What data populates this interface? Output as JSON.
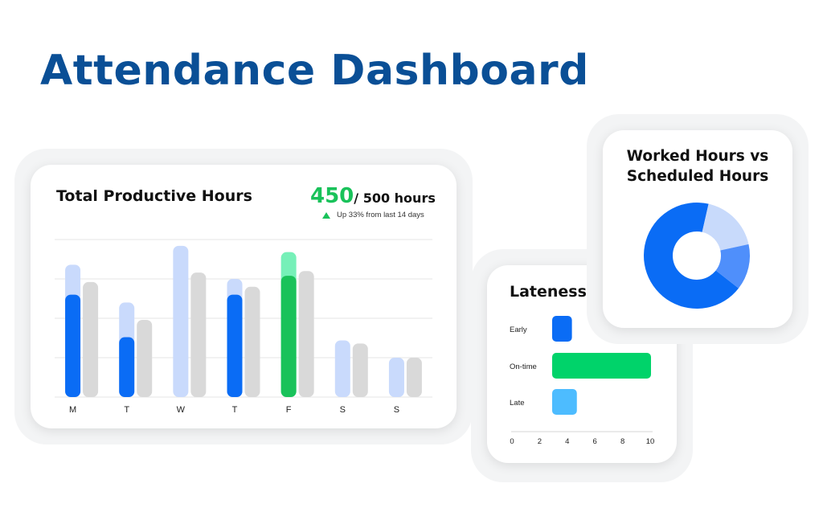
{
  "page": {
    "title": "Attendance Dashboard"
  },
  "productive_hours": {
    "title": "Total Productive Hours",
    "kpi_value": "450",
    "kpi_total": "/ 500 hours",
    "trend_text": "Up 33% from last 14 days",
    "trend_icon": "triangle-up-icon"
  },
  "lateness": {
    "title": "Lateness"
  },
  "donut": {
    "title_line1": "Worked Hours vs",
    "title_line2": "Scheduled Hours"
  },
  "colors": {
    "title": "#0a4f96",
    "blue": "#0a6cf5",
    "light_blue": "#c9dafc",
    "gray": "#d9d9d9",
    "green": "#19c25a",
    "mint": "#76f0b8",
    "late_green": "#00d36a",
    "sky": "#4dbcff",
    "donut_mid": "#4f8ffb",
    "donut_light": "#c8dafb"
  },
  "chart_data": [
    {
      "type": "bar",
      "title": "Total Productive Hours",
      "categories": [
        "M",
        "T",
        "W",
        "T",
        "F",
        "S",
        "S"
      ],
      "ylim": [
        0,
        100
      ],
      "grid": true,
      "series": [
        {
          "values": [
            84,
            60,
            96,
            75,
            92,
            36,
            25
          ],
          "color": "light_blue"
        },
        {
          "values": [
            65,
            38,
            0,
            65,
            77,
            0,
            0
          ],
          "color": "blue",
          "highlight_index": 4,
          "highlight_color": "green",
          "highlight_back": "mint"
        },
        {
          "values": [
            73,
            49,
            79,
            70,
            80,
            34,
            25
          ],
          "color": "gray"
        }
      ]
    },
    {
      "type": "bar",
      "orientation": "horizontal",
      "title": "Lateness",
      "categories": [
        "Early",
        "On-time",
        "Late"
      ],
      "values": [
        2,
        10,
        2.5
      ],
      "xticks": [
        0,
        2,
        4,
        6,
        8,
        10
      ],
      "xlim": [
        0,
        10
      ]
    },
    {
      "type": "pie",
      "title": "Worked Hours vs Scheduled Hours",
      "values": [
        68,
        18,
        14
      ],
      "colors": [
        "blue",
        "donut_light",
        "donut_mid"
      ]
    }
  ]
}
